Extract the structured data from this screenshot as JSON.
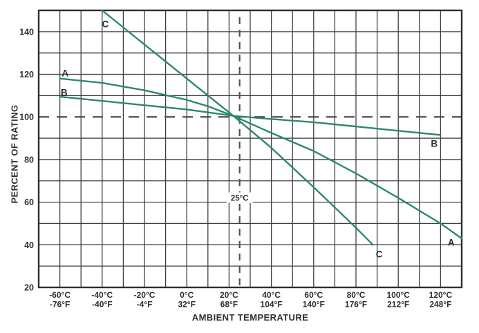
{
  "colors": {
    "curve_green": "#2b8a66",
    "grid": "#3f3f3f",
    "border": "#2d2d2d",
    "dashed_reference": "#4f4f4f",
    "text": "#2e2e2e",
    "background": "#ffffff"
  },
  "chart_data": {
    "type": "line",
    "title": "",
    "xlabel": "AMBIENT TEMPERATURE",
    "ylabel": "PERCENT OF RATING",
    "xlim": [
      -70,
      130
    ],
    "ylim": [
      20,
      150
    ],
    "grid": true,
    "grid_step_x": 10,
    "grid_step_y": 10,
    "x_unit": "°C",
    "y_unit": "%",
    "x_ticks": [
      {
        "value": -60,
        "celsius": "-60°C",
        "fahrenheit": "-76°F"
      },
      {
        "value": -40,
        "celsius": "-40°C",
        "fahrenheit": "-40°F"
      },
      {
        "value": -20,
        "celsius": "-20°C",
        "fahrenheit": "-4°F"
      },
      {
        "value": 0,
        "celsius": "0°C",
        "fahrenheit": "32°F"
      },
      {
        "value": 20,
        "celsius": "20°C",
        "fahrenheit": "68°F"
      },
      {
        "value": 40,
        "celsius": "40°C",
        "fahrenheit": "104°F"
      },
      {
        "value": 60,
        "celsius": "60°C",
        "fahrenheit": "140°F"
      },
      {
        "value": 80,
        "celsius": "80°C",
        "fahrenheit": "176°F"
      },
      {
        "value": 100,
        "celsius": "100°C",
        "fahrenheit": "212°F"
      },
      {
        "value": 120,
        "celsius": "120°C",
        "fahrenheit": "248°F"
      }
    ],
    "y_ticks": [
      20,
      40,
      60,
      80,
      100,
      120,
      140
    ],
    "reference_lines": {
      "horizontal": {
        "value": 100,
        "style": "dashed"
      },
      "vertical": {
        "value": 25,
        "style": "dashed",
        "label": "25°C",
        "label_at_percent": 62
      }
    },
    "series": [
      {
        "name": "A",
        "points": [
          [
            -60,
            118
          ],
          [
            -40,
            116
          ],
          [
            -20,
            112.5
          ],
          [
            0,
            108
          ],
          [
            10,
            105
          ],
          [
            22,
            100.5
          ],
          [
            40,
            92.5
          ],
          [
            60,
            84
          ],
          [
            80,
            73.5
          ],
          [
            100,
            62
          ],
          [
            120,
            50
          ],
          [
            130,
            43
          ]
        ],
        "labels": [
          {
            "text": "A",
            "x": -57.5,
            "y": 120.5
          },
          {
            "text": "A",
            "x": 125,
            "y": 41
          }
        ]
      },
      {
        "name": "B",
        "points": [
          [
            -60,
            109.5
          ],
          [
            -40,
            107.5
          ],
          [
            -20,
            105.5
          ],
          [
            0,
            103.5
          ],
          [
            22,
            100.5
          ],
          [
            40,
            99
          ],
          [
            60,
            97.5
          ],
          [
            80,
            95.5
          ],
          [
            100,
            93.5
          ],
          [
            120,
            91.5
          ]
        ],
        "labels": [
          {
            "text": "B",
            "x": -58,
            "y": 111.5
          },
          {
            "text": "B",
            "x": 117,
            "y": 87.5
          }
        ]
      },
      {
        "name": "C",
        "points": [
          [
            -40,
            150
          ],
          [
            -20,
            134
          ],
          [
            0,
            118
          ],
          [
            22,
            100.5
          ],
          [
            40,
            85.5
          ],
          [
            60,
            67
          ],
          [
            80,
            48
          ],
          [
            88,
            40
          ]
        ],
        "labels": [
          {
            "text": "C",
            "x": -38.5,
            "y": 143.5
          },
          {
            "text": "C",
            "x": 91,
            "y": 35.5
          }
        ]
      }
    ]
  }
}
